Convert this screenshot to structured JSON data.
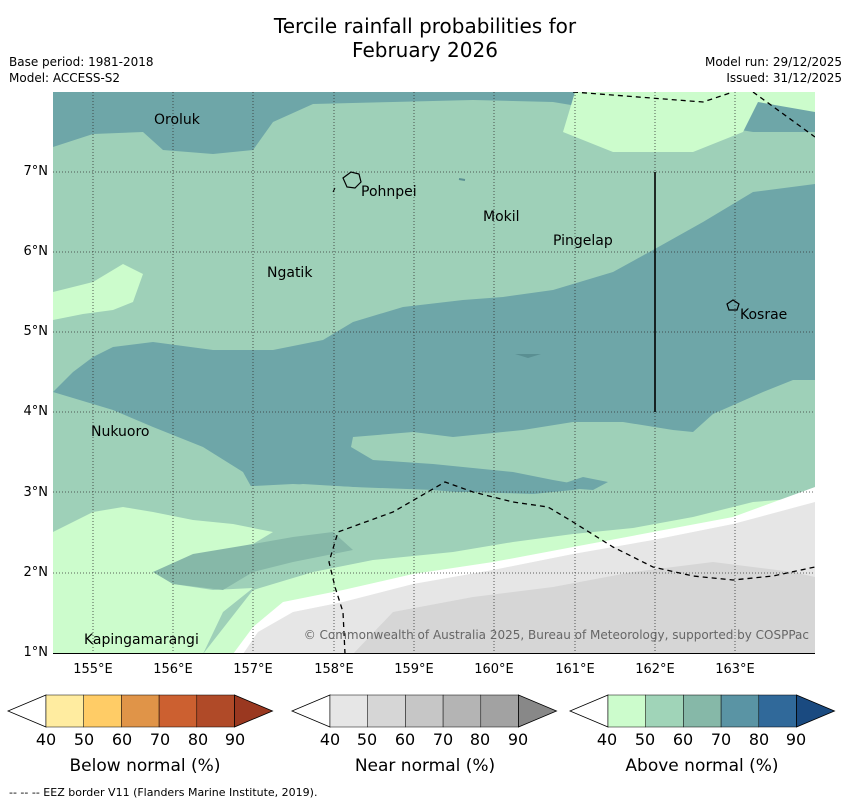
{
  "title_line1": "Tercile rainfall probabilities for",
  "title_line2": "February 2026",
  "base_period": "Base period: 1981-2018",
  "model": "Model: ACCESS-S2",
  "model_run": "Model run: 29/12/2025",
  "issued": "Issued: 31/12/2025",
  "lat_labels": [
    "7°N",
    "6°N",
    "5°N",
    "4°N",
    "3°N",
    "2°N",
    "1°N"
  ],
  "lon_labels": [
    "155°E",
    "156°E",
    "157°E",
    "158°E",
    "159°E",
    "160°E",
    "161°E",
    "162°E",
    "163°E"
  ],
  "places": {
    "oroluk": "Oroluk",
    "pohnpei": "Pohnpei",
    "mokil": "Mokil",
    "pingelap": "Pingelap",
    "ngatik": "Ngatik",
    "kosrae": "Kosrae",
    "nukuoro": "Nukuoro",
    "kapingamarangi": "Kapingamarangi"
  },
  "copyright": "© Commonwealth of Australia 2025, Bureau of Meteorology, supported by COSPPac",
  "colorbars": {
    "below": {
      "label": "Below normal (%)",
      "ticks": [
        "40",
        "50",
        "60",
        "70",
        "80",
        "90"
      ],
      "colors": [
        "#ffffff",
        "#ffeca0",
        "#ffcc66",
        "#e09448",
        "#cc6030",
        "#b04a28",
        "#9a3820"
      ]
    },
    "near": {
      "label": "Near normal (%)",
      "ticks": [
        "40",
        "50",
        "60",
        "70",
        "80",
        "90"
      ],
      "colors": [
        "#ffffff",
        "#e6e6e6",
        "#d6d6d6",
        "#c6c6c6",
        "#b4b4b4",
        "#a2a2a2",
        "#888888"
      ]
    },
    "above": {
      "label": "Above normal (%)",
      "ticks": [
        "40",
        "50",
        "60",
        "70",
        "80",
        "90"
      ],
      "colors": [
        "#ffffff",
        "#ccfccc",
        "#a0d4b8",
        "#86b8a8",
        "#5a94a4",
        "#30699a",
        "#1a4a80"
      ]
    }
  },
  "eez_note": "--  --  -- EEZ border V11 (Flanders Marine Institute, 2019)."
}
